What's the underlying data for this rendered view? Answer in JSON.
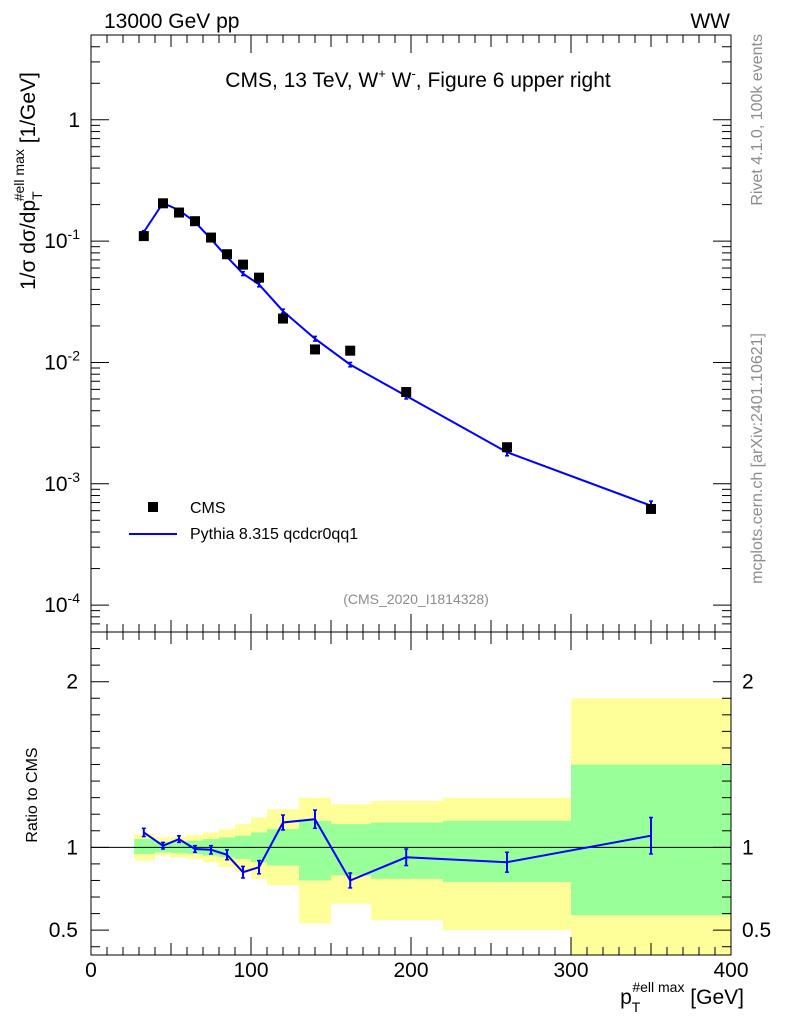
{
  "header": {
    "left": "13000 GeV pp",
    "right": "WW"
  },
  "side_labels": {
    "rivet": "Rivet 4.1.0,  100k events",
    "site": "mcplots.cern.ch [arXiv:2401.10621]"
  },
  "main_panel": {
    "title_prefix": "CMS, 13 TeV, W",
    "title_sup1": "+",
    "title_mid": " W",
    "title_sup2": "-",
    "title_suffix": ", Figure 6 upper right",
    "analysis_id": "(CMS_2020_I1814328)",
    "ylabel_main": "1/σ dσ/dp",
    "ylabel_sub": "T",
    "ylabel_sup": "#ell max",
    "ylabel_unit": " [1/GeV]",
    "y_ticks": [
      {
        "base": "10",
        "exp": "-4"
      },
      {
        "base": "10",
        "exp": "-3"
      },
      {
        "base": "10",
        "exp": "-2"
      },
      {
        "base": "10",
        "exp": "-1"
      },
      {
        "base": "1",
        "exp": ""
      }
    ]
  },
  "ratio_panel": {
    "ylabel": "Ratio to CMS",
    "y_ticks": [
      "0.5",
      "1",
      "2"
    ]
  },
  "x_axis": {
    "label_main": "p",
    "label_sub": "T",
    "label_sup": "#ell max",
    "label_unit": " [GeV]",
    "ticks": [
      "0",
      "100",
      "200",
      "300",
      "400"
    ]
  },
  "legend": {
    "data_label": "CMS",
    "mc_label": "Pythia 8.315 qcdcr0qq1"
  },
  "colors": {
    "data": "#000000",
    "mc": "#0000ff",
    "band_inner": "#99ff99",
    "band_outer": "#ffff99"
  },
  "chart_data": {
    "type": "line",
    "xlim": [
      0,
      400
    ],
    "ylim_main_log": [
      6e-05,
      5
    ],
    "ylim_ratio": [
      0.35,
      2.3
    ],
    "data_points": [
      {
        "x": 33,
        "y": 0.11
      },
      {
        "x": 45,
        "y": 0.205
      },
      {
        "x": 55,
        "y": 0.172
      },
      {
        "x": 65,
        "y": 0.146
      },
      {
        "x": 75,
        "y": 0.107
      },
      {
        "x": 85,
        "y": 0.078
      },
      {
        "x": 95,
        "y": 0.064
      },
      {
        "x": 105,
        "y": 0.05
      },
      {
        "x": 120,
        "y": 0.023
      },
      {
        "x": 140,
        "y": 0.0128
      },
      {
        "x": 162,
        "y": 0.0125
      },
      {
        "x": 197,
        "y": 0.0057
      },
      {
        "x": 260,
        "y": 0.002
      },
      {
        "x": 350,
        "y": 0.00062
      }
    ],
    "mc_points": [
      {
        "x": 33,
        "y": 0.119,
        "err": 0.003
      },
      {
        "x": 45,
        "y": 0.206,
        "err": 0.004
      },
      {
        "x": 55,
        "y": 0.18,
        "err": 0.004
      },
      {
        "x": 65,
        "y": 0.144,
        "err": 0.003
      },
      {
        "x": 75,
        "y": 0.104,
        "err": 0.003
      },
      {
        "x": 85,
        "y": 0.074,
        "err": 0.002
      },
      {
        "x": 95,
        "y": 0.054,
        "err": 0.002
      },
      {
        "x": 105,
        "y": 0.044,
        "err": 0.002
      },
      {
        "x": 120,
        "y": 0.0265,
        "err": 0.001
      },
      {
        "x": 140,
        "y": 0.0157,
        "err": 0.0007
      },
      {
        "x": 162,
        "y": 0.0096,
        "err": 0.0004
      },
      {
        "x": 197,
        "y": 0.0053,
        "err": 0.0003
      },
      {
        "x": 260,
        "y": 0.00182,
        "err": 0.00012
      },
      {
        "x": 350,
        "y": 0.00066,
        "err": 6e-05
      }
    ],
    "ratio_points": [
      {
        "x": 33,
        "y": 1.09,
        "err": 0.025
      },
      {
        "x": 45,
        "y": 1.01,
        "err": 0.02
      },
      {
        "x": 55,
        "y": 1.05,
        "err": 0.02
      },
      {
        "x": 65,
        "y": 0.99,
        "err": 0.02
      },
      {
        "x": 75,
        "y": 0.985,
        "err": 0.025
      },
      {
        "x": 85,
        "y": 0.955,
        "err": 0.03
      },
      {
        "x": 95,
        "y": 0.85,
        "err": 0.035
      },
      {
        "x": 105,
        "y": 0.88,
        "err": 0.04
      },
      {
        "x": 120,
        "y": 1.15,
        "err": 0.045
      },
      {
        "x": 140,
        "y": 1.17,
        "err": 0.055
      },
      {
        "x": 162,
        "y": 0.8,
        "err": 0.045
      },
      {
        "x": 197,
        "y": 0.94,
        "err": 0.05
      },
      {
        "x": 260,
        "y": 0.91,
        "err": 0.06
      },
      {
        "x": 350,
        "y": 1.07,
        "err": 0.11
      }
    ],
    "uncertainty_bins": [
      {
        "x0": 27,
        "x1": 40,
        "inner": [
          0.96,
          1.05
        ],
        "outer": [
          0.92,
          1.08
        ]
      },
      {
        "x0": 40,
        "x1": 50,
        "inner": [
          0.97,
          1.03
        ],
        "outer": [
          0.95,
          1.06
        ]
      },
      {
        "x0": 50,
        "x1": 60,
        "inner": [
          0.965,
          1.035
        ],
        "outer": [
          0.94,
          1.065
        ]
      },
      {
        "x0": 60,
        "x1": 70,
        "inner": [
          0.96,
          1.04
        ],
        "outer": [
          0.93,
          1.075
        ]
      },
      {
        "x0": 70,
        "x1": 80,
        "inner": [
          0.95,
          1.05
        ],
        "outer": [
          0.91,
          1.09
        ]
      },
      {
        "x0": 80,
        "x1": 90,
        "inner": [
          0.94,
          1.06
        ],
        "outer": [
          0.88,
          1.11
        ]
      },
      {
        "x0": 90,
        "x1": 100,
        "inner": [
          0.93,
          1.07
        ],
        "outer": [
          0.85,
          1.14
        ]
      },
      {
        "x0": 100,
        "x1": 110,
        "inner": [
          0.91,
          1.09
        ],
        "outer": [
          0.81,
          1.18
        ]
      },
      {
        "x0": 110,
        "x1": 130,
        "inner": [
          0.89,
          1.11
        ],
        "outer": [
          0.77,
          1.23
        ]
      },
      {
        "x0": 130,
        "x1": 150,
        "inner": [
          0.8,
          1.16
        ],
        "outer": [
          0.54,
          1.3
        ]
      },
      {
        "x0": 150,
        "x1": 175,
        "inner": [
          0.83,
          1.14
        ],
        "outer": [
          0.66,
          1.26
        ]
      },
      {
        "x0": 175,
        "x1": 220,
        "inner": [
          0.81,
          1.15
        ],
        "outer": [
          0.56,
          1.28
        ]
      },
      {
        "x0": 220,
        "x1": 300,
        "inner": [
          0.79,
          1.16
        ],
        "outer": [
          0.5,
          1.3
        ]
      },
      {
        "x0": 300,
        "x1": 400,
        "inner": [
          0.59,
          1.5
        ],
        "outer": [
          0.35,
          1.9
        ]
      }
    ]
  }
}
